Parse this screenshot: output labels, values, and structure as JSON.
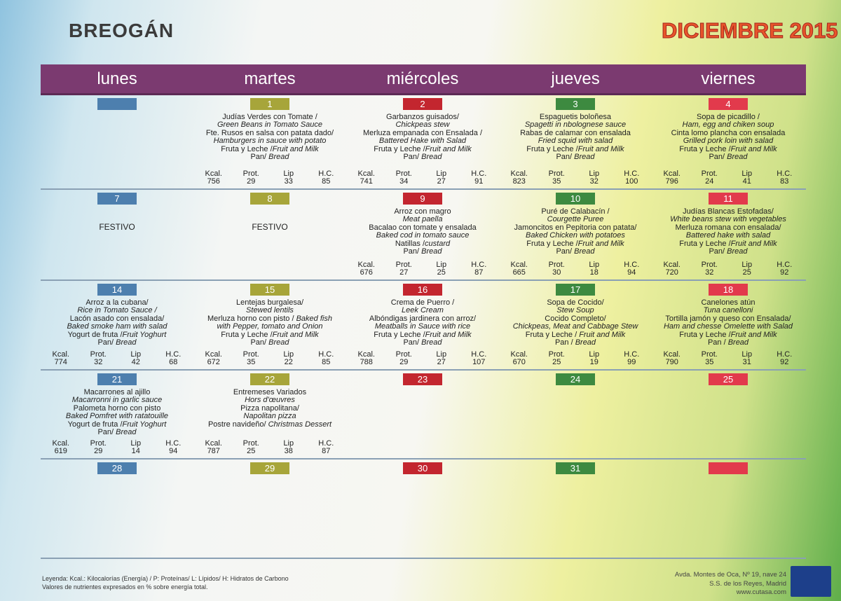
{
  "header": {
    "title": "BREOGÁN",
    "month": "DICIEMBRE 2015"
  },
  "columns": [
    {
      "name": "lunes",
      "color": "#4d7fae"
    },
    {
      "name": "martes",
      "color": "#a7a53a"
    },
    {
      "name": "miércoles",
      "color": "#c3262f"
    },
    {
      "name": "jueves",
      "color": "#3d8a40"
    },
    {
      "name": "viernes",
      "color": "#e23a4c"
    }
  ],
  "nutrition_labels": {
    "kcal": "Kcal.",
    "prot": "Prot.",
    "lip": "Lip",
    "hc": "H.C."
  },
  "weeks": [
    [
      {
        "day": null
      },
      {
        "day": "1",
        "lines": [
          {
            "text": "Judías Verdes con Tomate /"
          },
          {
            "italic": "Green Beans in Tomato Sauce"
          },
          {
            "text": "Fte. Rusos en salsa con patata dado/"
          },
          {
            "italic": "Hamburgers in sauce with potato"
          },
          {
            "text": "Fruta y Leche /",
            "italic": "Fruit and Milk"
          },
          {
            "text": "Pan/ ",
            "italic": "Bread"
          }
        ],
        "nutrition": {
          "kcal": 756,
          "prot": 29,
          "lip": 33,
          "hc": 85
        }
      },
      {
        "day": "2",
        "lines": [
          {
            "text": "Garbanzos guisados/"
          },
          {
            "italic": "Chickpeas stew"
          },
          {
            "text": "Merluza empanada con Ensalada /"
          },
          {
            "italic": "Battered Hake with Salad"
          },
          {
            "text": "Fruta y Leche /",
            "italic": "Fruit and Milk"
          },
          {
            "text": "Pan/ ",
            "italic": "Bread"
          }
        ],
        "nutrition": {
          "kcal": 741,
          "prot": 34,
          "lip": 27,
          "hc": 91
        }
      },
      {
        "day": "3",
        "lines": [
          {
            "text": "Espaguetis boloñesa"
          },
          {
            "italic": "Spagetti in nbolognese sauce"
          },
          {
            "text": "Rabas de calamar con ensalada"
          },
          {
            "italic": "Fried squid with salad"
          },
          {
            "text": "Fruta y Leche /",
            "italic": "Fruit and Milk"
          },
          {
            "text": "Pan/ ",
            "italic": "Bread"
          }
        ],
        "nutrition": {
          "kcal": 823,
          "prot": 35,
          "lip": 32,
          "hc": 100
        }
      },
      {
        "day": "4",
        "lines": [
          {
            "text": "Sopa de picadillo /"
          },
          {
            "italic": "Ham, egg and chiken soup"
          },
          {
            "text": "Cinta lomo plancha con ensalada"
          },
          {
            "italic": "Grilled pork loin with salad"
          },
          {
            "text": "Fruta y Leche /",
            "italic": "Fruit and Milk"
          },
          {
            "text": "Pan/ ",
            "italic": "Bread"
          }
        ],
        "nutrition": {
          "kcal": 796,
          "prot": 24,
          "lip": 41,
          "hc": 83
        }
      }
    ],
    [
      {
        "day": "7",
        "note": "FESTIVO"
      },
      {
        "day": "8",
        "note": "FESTIVO"
      },
      {
        "day": "9",
        "lines": [
          {
            "text": "Arroz con magro"
          },
          {
            "italic": "Meat paella"
          },
          {
            "text": "Bacalao con tomate y ensalada"
          },
          {
            "italic": "Baked cod in tomato sauce"
          },
          {
            "text": "Natillas /",
            "italic": "custard"
          },
          {
            "text": "Pan/ ",
            "italic": "Bread"
          }
        ],
        "nutrition": {
          "kcal": 676,
          "prot": 27,
          "lip": 25,
          "hc": 87
        }
      },
      {
        "day": "10",
        "lines": [
          {
            "text": "Puré de Calabacín /"
          },
          {
            "italic": "Courgette Puree"
          },
          {
            "text": "Jamoncitos en Pepitoria con patata/"
          },
          {
            "italic": "Baked Chicken with potatoes"
          },
          {
            "text": "Fruta y Leche /",
            "italic": "Fruit and Milk"
          },
          {
            "text": "Pan/ ",
            "italic": "Bread"
          }
        ],
        "nutrition": {
          "kcal": 665,
          "prot": 30,
          "lip": 18,
          "hc": 94
        }
      },
      {
        "day": "11",
        "lines": [
          {
            "text": "Judías Blancas Estofadas/"
          },
          {
            "italic": "White beans stew with vegetables"
          },
          {
            "text": "Merluza romana con ensalada/"
          },
          {
            "italic": "Battered hake with salad"
          },
          {
            "text": "Fruta y Leche /",
            "italic": "Fruit and Milk"
          },
          {
            "text": "Pan/ ",
            "italic": "Bread"
          }
        ],
        "nutrition": {
          "kcal": 720,
          "prot": 32,
          "lip": 25,
          "hc": 92
        }
      }
    ],
    [
      {
        "day": "14",
        "lines": [
          {
            "text": "Arroz a la cubana/"
          },
          {
            "italic": "Rice in Tomato Sauce /"
          },
          {
            "text": "Lacón asado con ensalada/"
          },
          {
            "italic": "Baked smoke ham with salad"
          },
          {
            "text": "Yogurt de fruta /",
            "italic": "Fruit Yoghurt"
          },
          {
            "text": "Pan/ ",
            "italic": "Bread"
          }
        ],
        "nutrition": {
          "kcal": 774,
          "prot": 32,
          "lip": 42,
          "hc": 68
        }
      },
      {
        "day": "15",
        "lines": [
          {
            "text": "Lentejas burgalesa/"
          },
          {
            "italic": "Stewed lentils"
          },
          {
            "text": "Merluza horno con pisto / ",
            "italic": "Baked fish"
          },
          {
            "italic": "with Pepper, tomato and Onion"
          },
          {
            "text": "Fruta y Leche /",
            "italic": "Fruit and Milk"
          },
          {
            "text": "Pan/ ",
            "italic": "Bread"
          }
        ],
        "nutrition": {
          "kcal": 672,
          "prot": 35,
          "lip": 22,
          "hc": 85
        }
      },
      {
        "day": "16",
        "lines": [
          {
            "text": "Crema de Puerro /"
          },
          {
            "italic": "Leek Cream"
          },
          {
            "text": "Albóndigas jardinera con arroz/"
          },
          {
            "italic": "Meatballs in Sauce with rice"
          },
          {
            "text": "Fruta y Leche /",
            "italic": "Fruit and Milk"
          },
          {
            "text": "Pan/ ",
            "italic": "Bread"
          }
        ],
        "nutrition": {
          "kcal": 788,
          "prot": 29,
          "lip": 27,
          "hc": 107
        }
      },
      {
        "day": "17",
        "lines": [
          {
            "text": "Sopa de Cocido/"
          },
          {
            "italic": "Stew Soup"
          },
          {
            "text": "Cocido Completo/"
          },
          {
            "italic": "Chickpeas, Meat and Cabbage Stew"
          },
          {
            "text": "Fruta y Leche / ",
            "italic": "Fruit and Milk"
          },
          {
            "text": "Pan / ",
            "italic": "Bread"
          }
        ],
        "nutrition": {
          "kcal": 670,
          "prot": 25,
          "lip": 19,
          "hc": 99
        }
      },
      {
        "day": "18",
        "lines": [
          {
            "text": "Canelones atún"
          },
          {
            "italic": "Tuna canelloni"
          },
          {
            "text": "Tortilla jamón y queso con Ensalada/"
          },
          {
            "italic": "Ham and chesse Omelette with Salad"
          },
          {
            "text": "Fruta y Leche /",
            "italic": "Fruit and Milk"
          },
          {
            "text": "Pan / ",
            "italic": "Bread"
          }
        ],
        "nutrition": {
          "kcal": 790,
          "prot": 35,
          "lip": 31,
          "hc": 92
        }
      }
    ],
    [
      {
        "day": "21",
        "lines": [
          {
            "text": "Macarrones al ajillo"
          },
          {
            "italic": "Macarronni in garlic sauce"
          },
          {
            "text": "Palometa horno con pisto"
          },
          {
            "italic": "Baked Pomfret with ratatouille"
          },
          {
            "text": "Yogurt de fruta /",
            "italic": "Fruit Yoghurt"
          },
          {
            "text": "Pan/ ",
            "italic": "Bread"
          }
        ],
        "nutrition": {
          "kcal": 619,
          "prot": 29,
          "lip": 14,
          "hc": 94
        }
      },
      {
        "day": "22",
        "lines": [
          {
            "text": "Entremeses Variados"
          },
          {
            "italic": "Hors d'œuvres"
          },
          {
            "text": "Pizza napolitana/"
          },
          {
            "italic": "Napolitan pizza"
          },
          {
            "text": "Postre navideño/ ",
            "italic": "Christmas Dessert"
          }
        ],
        "nutrition": {
          "kcal": 787,
          "prot": 25,
          "lip": 38,
          "hc": 87
        }
      },
      {
        "day": "23"
      },
      {
        "day": "24"
      },
      {
        "day": "25"
      }
    ],
    [
      {
        "day": "28"
      },
      {
        "day": "29"
      },
      {
        "day": "30"
      },
      {
        "day": "31"
      },
      {
        "day": null
      }
    ]
  ],
  "footer": {
    "legend": [
      "Leyenda: Kcal.: Kilocalorías (Energía) / P: Proteínas/ L: Lípidos/ H: Hidratos de Carbono",
      "Valores de nutrientes expresados en % sobre energía total."
    ],
    "address": [
      "Avda. Montes de Oca, Nº 19, nave 24",
      "S.S. de los Reyes, Madrid",
      "www.cutasa.com"
    ]
  }
}
